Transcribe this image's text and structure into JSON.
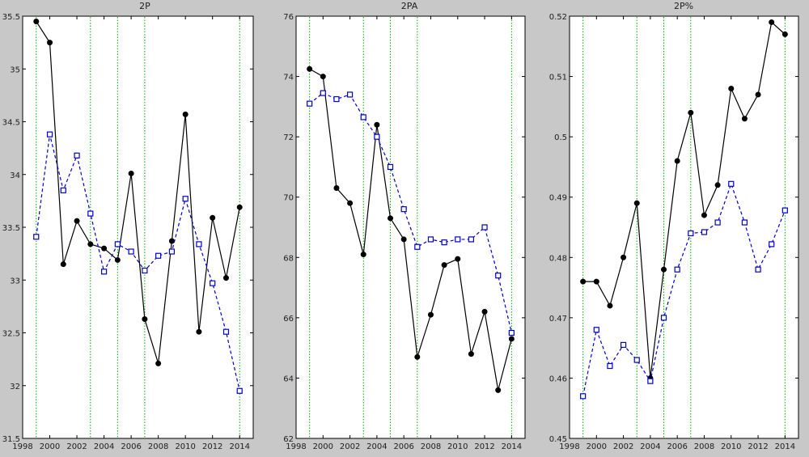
{
  "chart_data": [
    {
      "type": "line",
      "title": "2P",
      "xlabel": "",
      "ylabel": "",
      "xlim": [
        1998,
        2015
      ],
      "ylim": [
        31.5,
        35.5
      ],
      "xticks": [
        1998,
        2000,
        2002,
        2004,
        2006,
        2008,
        2010,
        2012,
        2014
      ],
      "yticks": [
        31.5,
        32,
        32.5,
        33,
        33.5,
        34,
        34.5,
        35,
        35.5
      ],
      "xtick_labels": [
        "1998",
        "2000",
        "2002",
        "2004",
        "2006",
        "2008",
        "2010",
        "2012",
        "2014"
      ],
      "ytick_labels": [
        "31.5",
        "32",
        "32.5",
        "33",
        "33.5",
        "34",
        "34.5",
        "35",
        "35.5"
      ],
      "vlines": [
        1999,
        2003,
        2005,
        2007,
        2014
      ],
      "x": [
        1999,
        2000,
        2001,
        2002,
        2003,
        2004,
        2005,
        2006,
        2007,
        2008,
        2009,
        2010,
        2011,
        2012,
        2013,
        2014
      ],
      "series": [
        {
          "values": [
            35.45,
            35.25,
            33.15,
            33.56,
            33.34,
            33.3,
            33.19,
            34.01,
            32.63,
            32.21,
            33.37,
            34.57,
            32.51,
            33.59,
            33.02,
            33.69
          ]
        },
        {
          "values": [
            33.41,
            34.38,
            33.85,
            34.18,
            33.63,
            33.08,
            33.34,
            33.27,
            33.09,
            33.23,
            33.27,
            33.77,
            33.34,
            32.97,
            32.51,
            31.95
          ]
        }
      ]
    },
    {
      "type": "line",
      "title": "2PA",
      "xlabel": "",
      "ylabel": "",
      "xlim": [
        1998,
        2015
      ],
      "ylim": [
        62,
        76
      ],
      "xticks": [
        1998,
        2000,
        2002,
        2004,
        2006,
        2008,
        2010,
        2012,
        2014
      ],
      "yticks": [
        62,
        64,
        66,
        68,
        70,
        72,
        74,
        76
      ],
      "xtick_labels": [
        "1998",
        "2000",
        "2002",
        "2004",
        "2006",
        "2008",
        "2010",
        "2012",
        "2014"
      ],
      "ytick_labels": [
        "62",
        "64",
        "66",
        "68",
        "70",
        "72",
        "74",
        "76"
      ],
      "vlines": [
        1999,
        2003,
        2005,
        2007,
        2014
      ],
      "x": [
        1999,
        2000,
        2001,
        2002,
        2003,
        2004,
        2005,
        2006,
        2007,
        2008,
        2009,
        2010,
        2011,
        2012,
        2013,
        2014
      ],
      "series": [
        {
          "values": [
            74.25,
            74.0,
            70.3,
            69.8,
            68.1,
            72.4,
            69.3,
            68.6,
            64.7,
            66.1,
            67.75,
            67.95,
            64.8,
            66.2,
            63.6,
            65.3
          ]
        },
        {
          "values": [
            73.1,
            73.45,
            73.25,
            73.4,
            72.65,
            72.0,
            71.0,
            69.6,
            68.35,
            68.6,
            68.5,
            68.6,
            68.6,
            69.0,
            67.4,
            65.5
          ]
        }
      ]
    },
    {
      "type": "line",
      "title": "2P%",
      "xlabel": "",
      "ylabel": "",
      "xlim": [
        1998,
        2015
      ],
      "ylim": [
        0.45,
        0.52
      ],
      "xticks": [
        1998,
        2000,
        2002,
        2004,
        2006,
        2008,
        2010,
        2012,
        2014
      ],
      "yticks": [
        0.45,
        0.46,
        0.47,
        0.48,
        0.49,
        0.5,
        0.51,
        0.52
      ],
      "xtick_labels": [
        "1998",
        "2000",
        "2002",
        "2004",
        "2006",
        "2008",
        "2010",
        "2012",
        "2014"
      ],
      "ytick_labels": [
        "0.45",
        "0.46",
        "0.47",
        "0.48",
        "0.49",
        "0.5",
        "0.51",
        "0.52"
      ],
      "vlines": [
        1999,
        2003,
        2005,
        2007,
        2014
      ],
      "x": [
        1999,
        2000,
        2001,
        2002,
        2003,
        2004,
        2005,
        2006,
        2007,
        2008,
        2009,
        2010,
        2011,
        2012,
        2013,
        2014
      ],
      "series": [
        {
          "values": [
            0.476,
            0.476,
            0.472,
            0.48,
            0.489,
            0.46,
            0.478,
            0.496,
            0.504,
            0.487,
            0.492,
            0.508,
            0.503,
            0.507,
            0.519,
            0.517
          ]
        },
        {
          "values": [
            0.457,
            0.468,
            0.462,
            0.4655,
            0.463,
            0.4595,
            0.47,
            0.478,
            0.484,
            0.4842,
            0.4858,
            0.4922,
            0.4858,
            0.478,
            0.4822,
            0.4878
          ]
        }
      ]
    }
  ],
  "styles": {
    "figure_bg": "#c8c8c8",
    "axes_bg": "#ffffff",
    "series_colors": [
      "#000000",
      "#0000cc"
    ],
    "series_markers": [
      "filled-circle",
      "open-square"
    ],
    "series_line_styles": [
      "solid",
      "dashed"
    ],
    "vline_color": "#00aa00"
  }
}
